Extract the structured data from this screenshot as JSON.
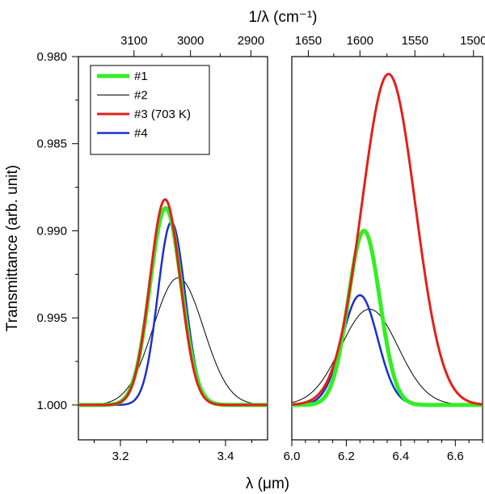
{
  "chart_data": {
    "type": "line",
    "title": "",
    "xlabel": "λ (μm)",
    "x2label": "1/λ (cm⁻¹)",
    "ylabel": "Transmittance (arb. unit)",
    "y_inverted": true,
    "ylim": [
      0.98,
      1.002
    ],
    "y_ticks": [
      "0.980",
      "0.985",
      "0.990",
      "0.995",
      "1.000"
    ],
    "panels": [
      {
        "name": "left",
        "xlim": [
          3.12,
          3.48
        ],
        "x_ticks": [
          "3.2",
          "3.4"
        ],
        "x2_ticks": [
          {
            "label": "3100",
            "wavenumber": 3100
          },
          {
            "label": "3000",
            "wavenumber": 3000
          },
          {
            "label": "2900",
            "wavenumber": 2900
          }
        ]
      },
      {
        "name": "right",
        "xlim": [
          6.0,
          6.7
        ],
        "x_ticks": [
          "6.0",
          "6.2",
          "6.4",
          "6.6"
        ],
        "x2_ticks": [
          {
            "label": "1650",
            "wavenumber": 1650
          },
          {
            "label": "1600",
            "wavenumber": 1600
          },
          {
            "label": "1550",
            "wavenumber": 1550
          },
          {
            "label": "1500",
            "wavenumber": 1500
          }
        ]
      }
    ],
    "series": [
      {
        "name": "#1",
        "label": "#1",
        "color": "#33ee22",
        "stroke": 5,
        "peaks": [
          {
            "panel": "left",
            "center": 3.286,
            "min_transmittance": 0.9887,
            "sigma": 0.03
          },
          {
            "panel": "right",
            "center": 6.265,
            "min_transmittance": 0.99,
            "sigma": 0.058
          }
        ]
      },
      {
        "name": "#2",
        "label": "#2",
        "color": "#000000",
        "stroke": 1,
        "peaks": [
          {
            "panel": "left",
            "center": 3.31,
            "min_transmittance": 0.9927,
            "sigma": 0.048
          },
          {
            "panel": "right",
            "center": 6.285,
            "min_transmittance": 0.9945,
            "sigma": 0.105
          }
        ]
      },
      {
        "name": "#3",
        "label": "#3  (703 K)",
        "color": "#e3201b",
        "stroke": 3,
        "peaks": [
          {
            "panel": "left",
            "center": 3.285,
            "min_transmittance": 0.9882,
            "sigma": 0.029
          },
          {
            "panel": "right",
            "center": 6.355,
            "min_transmittance": 0.981,
            "sigma": 0.098
          }
        ]
      },
      {
        "name": "#4",
        "label": "#4",
        "color": "#1a2fd0",
        "stroke": 2.5,
        "peaks": [
          {
            "panel": "left",
            "center": 3.297,
            "min_transmittance": 0.9895,
            "sigma": 0.026
          },
          {
            "panel": "right",
            "center": 6.25,
            "min_transmittance": 0.9937,
            "sigma": 0.065
          }
        ]
      }
    ]
  }
}
